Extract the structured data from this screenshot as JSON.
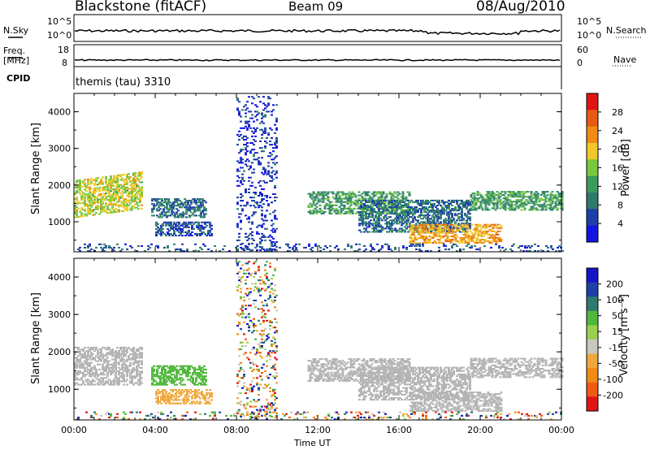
{
  "header": {
    "station": "Blackstone (fitACF)",
    "beam": "Beam 09",
    "date": "08/Aug/2010"
  },
  "top_panels": {
    "nsky_label": "N.Sky",
    "nsky_ticks": [
      "10^5",
      "10^0"
    ],
    "nsearch_label": "N.Search",
    "nsearch_ticks": [
      "10^5",
      "10^0"
    ],
    "freq_label_1": "Freq.",
    "freq_label_2": "[MHz]",
    "freq_ticks": [
      "18",
      "8"
    ],
    "nave_label": "Nave",
    "nave_ticks": [
      "60",
      "0"
    ],
    "cpid_label": "CPID",
    "cpid_value": "themis (tau) 3310"
  },
  "colors": {
    "power_scale": [
      "#1414e0",
      "#1e3fa8",
      "#2e7a6e",
      "#3a9c5a",
      "#78c83c",
      "#f0c828",
      "#f08c14",
      "#e85a14",
      "#e01414"
    ],
    "velocity_scale": [
      "#e01414",
      "#f05a14",
      "#f08c14",
      "#f0a83c",
      "#c8c8c0",
      "#9ad050",
      "#50b83c",
      "#2e7a6e",
      "#1e3fa8",
      "#1414c8"
    ],
    "ground_scatter": "#b4b4b4"
  },
  "chart_data": [
    {
      "type": "heatmap",
      "panel": "power",
      "xlabel": "",
      "ylabel": "Slant Range [km]",
      "ylim": [
        180,
        4500
      ],
      "y_ticks": [
        "1000",
        "2000",
        "3000",
        "4000"
      ],
      "x_ticks": [
        "00:00",
        "04:00",
        "08:00",
        "12:00",
        "16:00",
        "20:00",
        "00:00"
      ],
      "xlim_hours": [
        0,
        24
      ],
      "colorbar_label": "Power [dB]",
      "colorbar_ticks": [
        "4",
        "8",
        "12",
        "16",
        "20",
        "24",
        "28"
      ],
      "colorbar_range": [
        0,
        32
      ],
      "regions": [
        {
          "t0": 0.0,
          "t1": 3.3,
          "r0": 1100,
          "r1": 2100,
          "value": 18,
          "slope": 0.2
        },
        {
          "t0": 3.8,
          "t1": 6.5,
          "r0": 1100,
          "r1": 1600,
          "value": 8
        },
        {
          "t0": 4.0,
          "t1": 6.8,
          "r0": 600,
          "r1": 1000,
          "value": 6
        },
        {
          "t0": 8.0,
          "t1": 10.0,
          "r0": 200,
          "r1": 4400,
          "value": 4,
          "sparse": true
        },
        {
          "t0": 11.5,
          "t1": 16.5,
          "r0": 1200,
          "r1": 1800,
          "value": 12
        },
        {
          "t0": 14.0,
          "t1": 19.5,
          "r0": 700,
          "r1": 1600,
          "value": 8
        },
        {
          "t0": 16.5,
          "t1": 21.0,
          "r0": 400,
          "r1": 900,
          "value": 22
        },
        {
          "t0": 19.5,
          "t1": 24.0,
          "r0": 1300,
          "r1": 1800,
          "value": 12
        },
        {
          "t0": 0.0,
          "t1": 24.0,
          "r0": 180,
          "r1": 400,
          "value": 6,
          "sparse": true
        }
      ]
    },
    {
      "type": "heatmap",
      "panel": "velocity",
      "xlabel": "Time UT",
      "ylabel": "Slant Range [km]",
      "ylim": [
        180,
        4500
      ],
      "y_ticks": [
        "1000",
        "2000",
        "3000",
        "4000"
      ],
      "x_ticks": [
        "00:00",
        "04:00",
        "08:00",
        "12:00",
        "16:00",
        "20:00",
        "00:00"
      ],
      "xlim_hours": [
        0,
        24
      ],
      "colorbar_label": "Velocity [m s⁻¹]",
      "colorbar_ticks": [
        "200",
        "100",
        "50",
        "15",
        "-15",
        "-50",
        "-100",
        "-200"
      ],
      "colorbar_range": [
        -250,
        250
      ],
      "regions": [
        {
          "t0": 0.0,
          "t1": 3.3,
          "r0": 1100,
          "r1": 2100,
          "value": 0,
          "ground": true
        },
        {
          "t0": 3.8,
          "t1": 6.5,
          "r0": 1100,
          "r1": 1600,
          "value": 60
        },
        {
          "t0": 4.0,
          "t1": 6.8,
          "r0": 600,
          "r1": 1000,
          "value": -60
        },
        {
          "t0": 8.0,
          "t1": 10.0,
          "r0": 200,
          "r1": 4400,
          "value": 0,
          "sparse": true
        },
        {
          "t0": 11.5,
          "t1": 16.5,
          "r0": 1200,
          "r1": 1800,
          "value": 0,
          "ground": true
        },
        {
          "t0": 14.0,
          "t1": 19.5,
          "r0": 700,
          "r1": 1600,
          "value": 0,
          "ground": true
        },
        {
          "t0": 16.5,
          "t1": 21.0,
          "r0": 400,
          "r1": 900,
          "value": 0,
          "ground": true
        },
        {
          "t0": 19.5,
          "t1": 24.0,
          "r0": 1300,
          "r1": 1800,
          "value": 0,
          "ground": true
        },
        {
          "t0": 0.0,
          "t1": 24.0,
          "r0": 180,
          "r1": 400,
          "value": -60,
          "sparse": true
        }
      ]
    }
  ]
}
